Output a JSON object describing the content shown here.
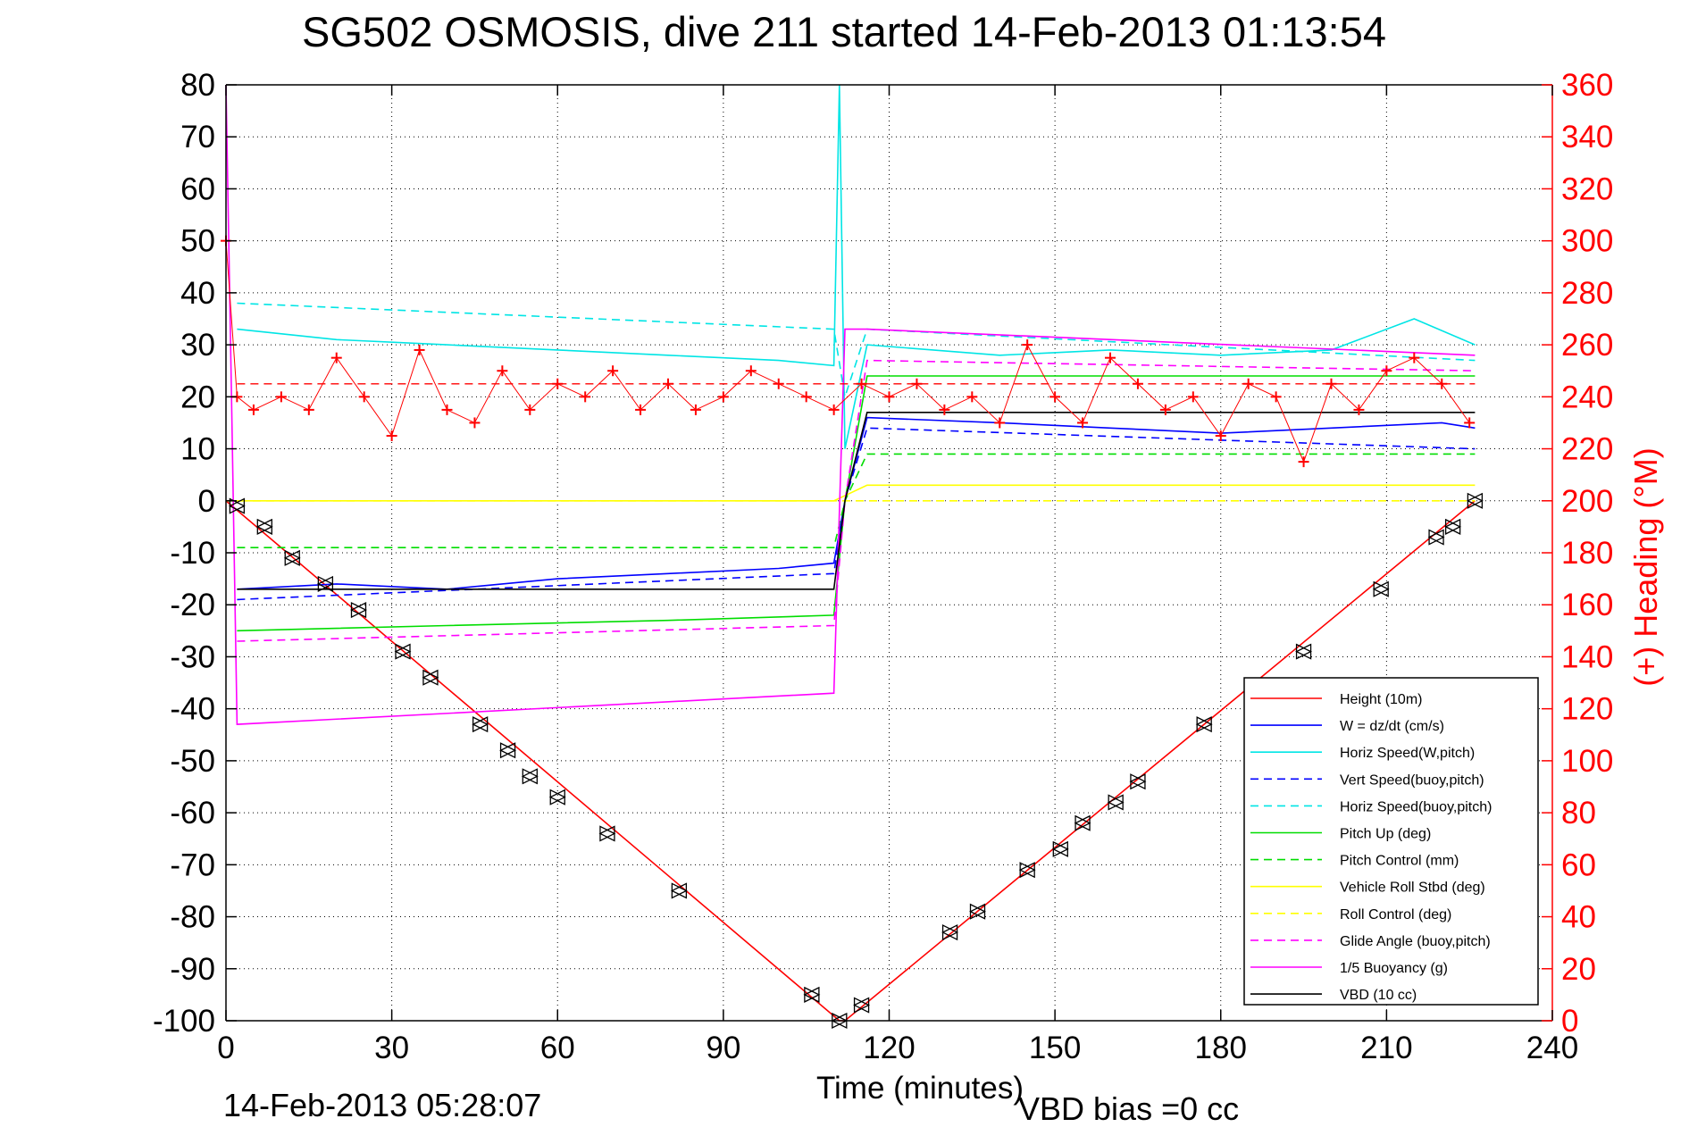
{
  "chart_data": {
    "type": "line",
    "title": "SG502 OSMOSIS, dive 211 started 14-Feb-2013 01:13:54",
    "xlabel": "Time (minutes)",
    "ylabel_right": "(+) Heading (°M)",
    "xlim": [
      0,
      240
    ],
    "ylim_left": [
      -100,
      80
    ],
    "ylim_right": [
      0,
      360
    ],
    "x_ticks": [
      0,
      30,
      60,
      90,
      120,
      150,
      180,
      210,
      240
    ],
    "y_ticks_left": [
      -100,
      -90,
      -80,
      -70,
      -60,
      -50,
      -40,
      -30,
      -20,
      -10,
      0,
      10,
      20,
      30,
      40,
      50,
      60,
      70,
      80
    ],
    "y_ticks_right": [
      0,
      20,
      40,
      60,
      80,
      100,
      120,
      140,
      160,
      180,
      200,
      220,
      240,
      260,
      280,
      300,
      320,
      340,
      360
    ],
    "grid": "dotted",
    "legend_position": "bottom-right",
    "footer_left": "14-Feb-2013 05:28:07",
    "footer_right": "VBD bias =0 cc",
    "colors": {
      "height": "#ff0000",
      "w": "#0000ff",
      "horiz_speed": "#00e5e5",
      "pitch": "#00dd00",
      "roll": "#ffff00",
      "glide": "#ff00ff",
      "vbd": "#000000",
      "heading": "#ff0000"
    },
    "series": [
      {
        "name": "Height (10m)",
        "style": "solid",
        "color": "#ff0000",
        "x": [
          0,
          111,
          112,
          226
        ],
        "y": [
          0,
          -100,
          -100,
          0
        ]
      },
      {
        "name": "W = dz/dt (cm/s)",
        "style": "solid",
        "color": "#0000ff",
        "x": [
          2,
          20,
          40,
          60,
          80,
          100,
          110,
          112,
          116,
          140,
          160,
          180,
          200,
          220,
          226
        ],
        "y": [
          -17,
          -16,
          -17,
          -15,
          -14,
          -13,
          -12,
          0,
          16,
          15,
          14,
          13,
          14,
          15,
          14
        ]
      },
      {
        "name": "Horiz Speed(W,pitch)",
        "style": "solid",
        "color": "#00e5e5",
        "x": [
          2,
          20,
          40,
          60,
          80,
          100,
          110,
          111,
          112,
          116,
          140,
          160,
          180,
          200,
          215,
          226
        ],
        "y": [
          33,
          31,
          30,
          29,
          28,
          27,
          26,
          80,
          10,
          30,
          28,
          29,
          28,
          29,
          35,
          30
        ]
      },
      {
        "name": "Vert Speed(buoy,pitch)",
        "style": "dashed",
        "color": "#0000ff",
        "x": [
          2,
          110,
          112,
          116,
          226
        ],
        "y": [
          -19,
          -14,
          0,
          14,
          10
        ]
      },
      {
        "name": "Horiz Speed(buoy,pitch)",
        "style": "dashed",
        "color": "#00e5e5",
        "x": [
          2,
          110,
          112,
          116,
          226
        ],
        "y": [
          38,
          33,
          20,
          33,
          27
        ]
      },
      {
        "name": "Pitch Up (deg)",
        "style": "solid",
        "color": "#00dd00",
        "x": [
          2,
          40,
          80,
          110,
          112,
          116,
          226
        ],
        "y": [
          -25,
          -24,
          -23,
          -22,
          0,
          24,
          24
        ]
      },
      {
        "name": "Pitch Control (mm)",
        "style": "dashed",
        "color": "#00dd00",
        "x": [
          2,
          110,
          112,
          116,
          226
        ],
        "y": [
          -9,
          -9,
          0,
          9,
          9
        ]
      },
      {
        "name": "Vehicle Roll Stbd (deg)",
        "style": "solid",
        "color": "#ffff00",
        "x": [
          0,
          110,
          116,
          226
        ],
        "y": [
          0,
          0,
          3,
          3
        ]
      },
      {
        "name": "Roll Control (deg)",
        "style": "dashed",
        "color": "#ffff00",
        "x": [
          0,
          110,
          116,
          226
        ],
        "y": [
          0,
          0,
          0,
          0
        ]
      },
      {
        "name": "Glide Angle (buoy,pitch)",
        "style": "dashed",
        "color": "#ff00ff",
        "x": [
          2,
          110,
          112,
          116,
          226
        ],
        "y": [
          -27,
          -24,
          0,
          27,
          25
        ]
      },
      {
        "name": "1/5 Buoyancy (g)",
        "style": "solid",
        "color": "#ff00ff",
        "x": [
          0,
          1,
          2,
          110,
          112,
          116,
          226
        ],
        "y": [
          80,
          20,
          -43,
          -37,
          33,
          33,
          28
        ]
      },
      {
        "name": "VBD (10 cc)",
        "style": "solid",
        "color": "#000000",
        "x": [
          2,
          110,
          112,
          116,
          226
        ],
        "y": [
          -17,
          -17,
          0,
          17,
          17
        ]
      }
    ],
    "heading_series": {
      "axis": "right",
      "color": "#ff0000",
      "marker": "+",
      "x": [
        0,
        2,
        5,
        10,
        15,
        20,
        25,
        30,
        35,
        40,
        45,
        50,
        55,
        60,
        65,
        70,
        75,
        80,
        85,
        90,
        95,
        100,
        105,
        110,
        115,
        120,
        125,
        130,
        135,
        140,
        145,
        150,
        155,
        160,
        165,
        170,
        175,
        180,
        185,
        190,
        195,
        200,
        205,
        210,
        215,
        220,
        225
      ],
      "y": [
        300,
        240,
        235,
        240,
        235,
        255,
        240,
        225,
        258,
        235,
        230,
        250,
        235,
        245,
        240,
        250,
        235,
        245,
        235,
        240,
        250,
        245,
        240,
        235,
        245,
        240,
        245,
        235,
        240,
        230,
        260,
        240,
        230,
        255,
        245,
        235,
        240,
        225,
        245,
        240,
        215,
        245,
        235,
        250,
        255,
        245,
        230
      ]
    },
    "heading_ref_lines": [
      {
        "style": "dashed",
        "color": "#ff0000",
        "x": [
          2,
          226
        ],
        "y": [
          245,
          245
        ]
      }
    ],
    "diamond_markers": [
      {
        "color": "#000000",
        "x": [
          2,
          7,
          12,
          18,
          24,
          32,
          37,
          46,
          51,
          55,
          60,
          69,
          82,
          106,
          111,
          115,
          131,
          136,
          145,
          151,
          155,
          161,
          165,
          177,
          195,
          209,
          219,
          222,
          226
        ],
        "y": [
          -1,
          -5,
          -11,
          -16,
          -21,
          -29,
          -34,
          -43,
          -48,
          -53,
          -57,
          -64,
          -75,
          -95,
          -100,
          -97,
          -83,
          -79,
          -71,
          -67,
          -62,
          -58,
          -54,
          -43,
          -29,
          -17,
          -7,
          -5,
          0
        ]
      }
    ]
  }
}
